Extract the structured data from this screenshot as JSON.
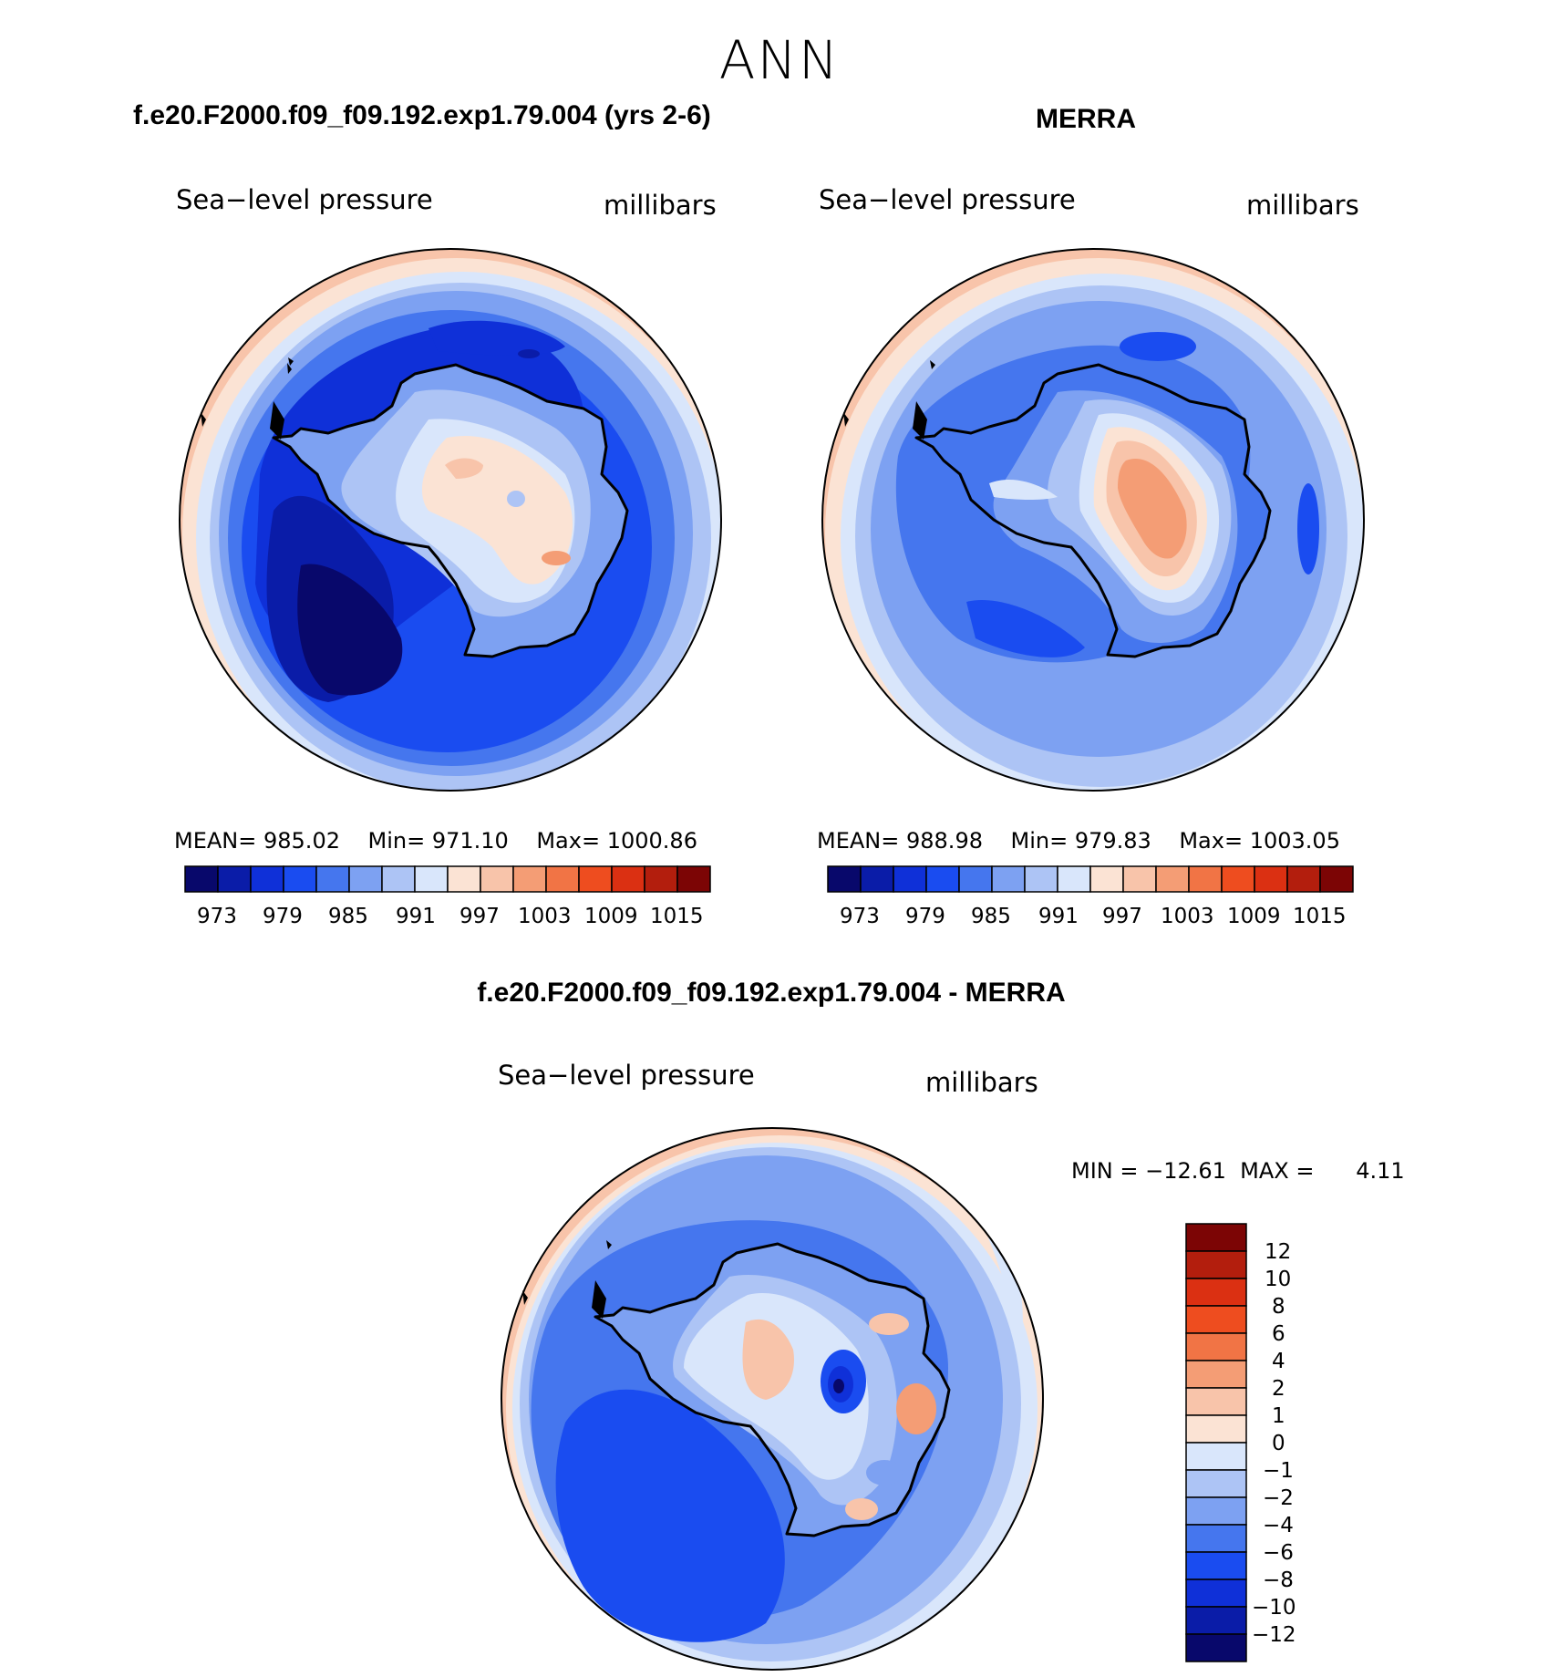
{
  "figure": {
    "title": "ANN",
    "colors": {
      "abs_levels": [
        "#08086b",
        "#0a1ca8",
        "#0f30d8",
        "#1a4cf0",
        "#4576ee",
        "#7da1f2",
        "#adc4f5",
        "#d9e6fb",
        "#fbe3d4",
        "#f8c4aa",
        "#f49d75",
        "#f17445",
        "#ee4d1f",
        "#db3012",
        "#b31e0d",
        "#7c0505"
      ],
      "diff_levels": [
        "#08086b",
        "#0a1ca8",
        "#0f30d8",
        "#1a4cf0",
        "#4576ee",
        "#7da1f2",
        "#adc4f5",
        "#d9e6fb",
        "#fbe3d4",
        "#f8c4aa",
        "#f49d75",
        "#f17445",
        "#ee4d1f",
        "#db3012",
        "#b31e0d",
        "#7c0505"
      ],
      "coastline": "#000000"
    }
  },
  "panels": [
    {
      "id": "model",
      "case_title": "f.e20.F2000.f09_f09.192.exp1.79.004 (yrs 2-6)",
      "variable": "Sea−level pressure",
      "units": "millibars",
      "mean_label": "MEAN=",
      "mean": "985.02",
      "min_label": "Min=",
      "min": "971.10",
      "max_label": "Max=",
      "max": "1000.86",
      "colorbar_ticks": [
        "973",
        "979",
        "985",
        "991",
        "997",
        "1003",
        "1009",
        "1015"
      ]
    },
    {
      "id": "obs",
      "case_title": "MERRA",
      "variable": "Sea−level pressure",
      "units": "millibars",
      "mean_label": "MEAN=",
      "mean": "988.98",
      "min_label": "Min=",
      "min": "979.83",
      "max_label": "Max=",
      "max": "1003.05",
      "colorbar_ticks": [
        "973",
        "979",
        "985",
        "991",
        "997",
        "1003",
        "1009",
        "1015"
      ]
    }
  ],
  "diff_panel": {
    "case_title": "f.e20.F2000.f09_f09.192.exp1.79.004 - MERRA",
    "variable": "Sea−level pressure",
    "units": "millibars",
    "minmax_text": "MIN = −12.61  MAX =      4.11",
    "colorbar_ticks": [
      "12",
      "10",
      "8",
      "6",
      "4",
      "2",
      "1",
      "0",
      "−1",
      "−2",
      "−4",
      "−6",
      "−8",
      "−10",
      "−12"
    ]
  }
}
